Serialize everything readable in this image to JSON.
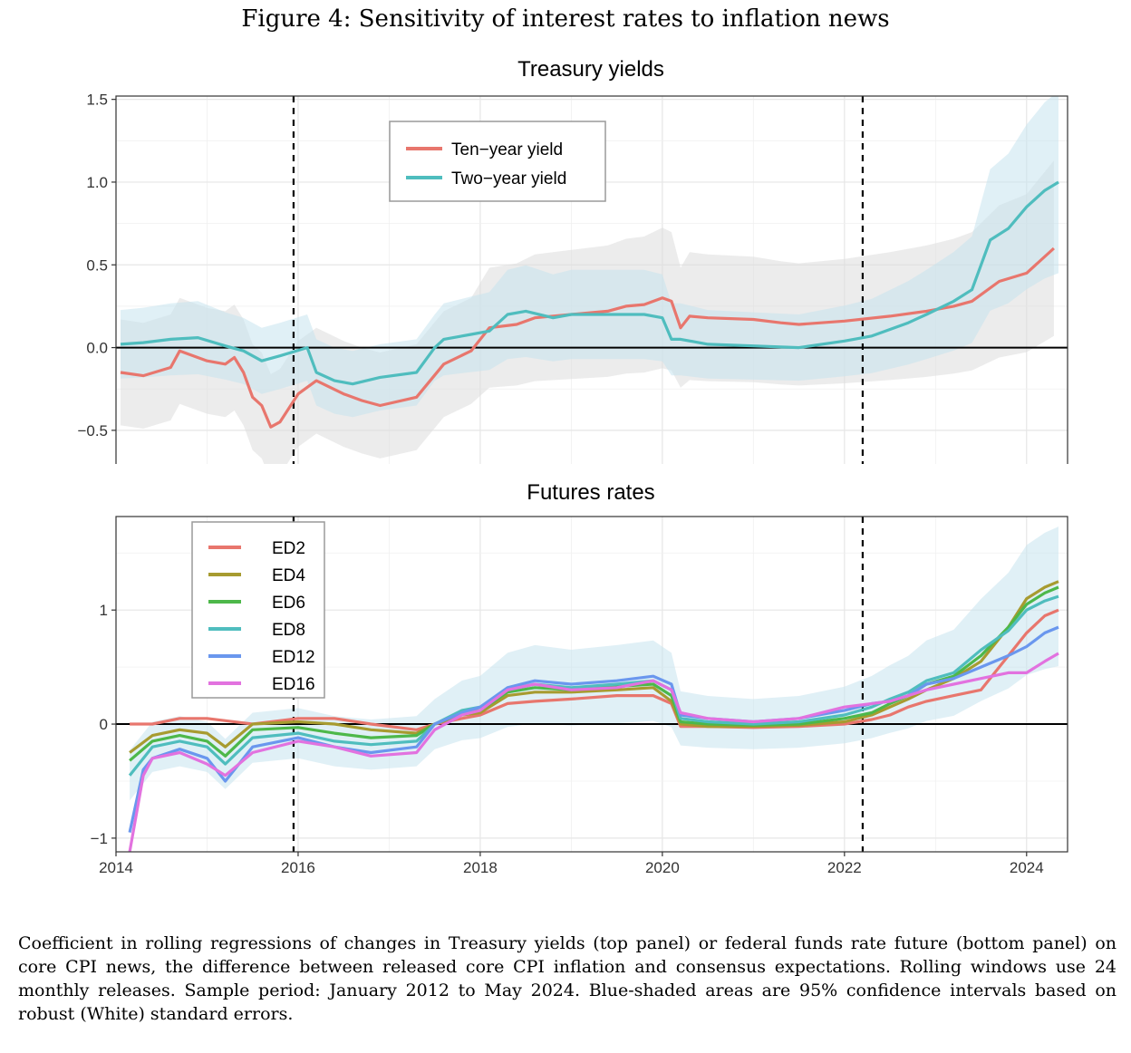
{
  "figure": {
    "title": "Figure 4: Sensitivity of interest rates to inflation news",
    "caption": "Coefficient in rolling regressions of changes in Treasury yields (top panel) or federal funds rate future (bottom panel) on core CPI news, the difference between released core CPI inflation and consensus expectations. Rolling windows use 24 monthly releases. Sample period: January 2012 to May 2024. Blue-shaded areas are 95% confidence intervals based on robust (White) standard errors."
  },
  "chart_data": [
    {
      "type": "line",
      "title": "Treasury yields",
      "xlabel": "",
      "ylabel": "",
      "xlim": [
        2014.0,
        2024.45
      ],
      "ylim": [
        -0.78,
        1.52
      ],
      "x_ticks": [
        2014,
        2016,
        2018,
        2020,
        2022,
        2024
      ],
      "x_tick_labels": [
        "2014",
        "2016",
        "2018",
        "2020",
        "2022",
        "2024"
      ],
      "y_ticks": [
        -0.5,
        0.0,
        0.5,
        1.0,
        1.5
      ],
      "y_tick_labels": [
        "−0.5",
        "0.0",
        "0.5",
        "1.0",
        "1.5"
      ],
      "vlines": [
        2015.95,
        2022.2
      ],
      "hline": 0,
      "grid": true,
      "legend_position": "top-center",
      "series": [
        {
          "name": "Ten−year yield",
          "color": "#E8766D",
          "x": [
            2014.05,
            2014.3,
            2014.6,
            2014.7,
            2015.0,
            2015.2,
            2015.3,
            2015.4,
            2015.5,
            2015.6,
            2015.7,
            2015.8,
            2016.0,
            2016.2,
            2016.5,
            2016.7,
            2016.9,
            2017.3,
            2017.6,
            2017.9,
            2018.1,
            2018.4,
            2018.6,
            2019.0,
            2019.4,
            2019.6,
            2019.8,
            2020.0,
            2020.1,
            2020.2,
            2020.3,
            2020.5,
            2021.0,
            2021.3,
            2021.5,
            2022.0,
            2022.5,
            2022.9,
            2023.2,
            2023.4,
            2023.7,
            2024.0,
            2024.3
          ],
          "y": [
            -0.15,
            -0.17,
            -0.12,
            -0.02,
            -0.08,
            -0.1,
            -0.06,
            -0.15,
            -0.3,
            -0.35,
            -0.48,
            -0.45,
            -0.28,
            -0.2,
            -0.28,
            -0.32,
            -0.35,
            -0.3,
            -0.1,
            -0.02,
            0.12,
            0.14,
            0.18,
            0.2,
            0.22,
            0.25,
            0.26,
            0.3,
            0.28,
            0.12,
            0.19,
            0.18,
            0.17,
            0.15,
            0.14,
            0.16,
            0.19,
            0.22,
            0.25,
            0.28,
            0.4,
            0.45,
            0.6
          ]
        },
        {
          "name": "Two−year yield",
          "color": "#4FBDBE",
          "x": [
            2014.05,
            2014.3,
            2014.6,
            2014.9,
            2015.2,
            2015.4,
            2015.6,
            2015.8,
            2016.1,
            2016.2,
            2016.4,
            2016.6,
            2016.9,
            2017.3,
            2017.5,
            2017.6,
            2017.9,
            2018.1,
            2018.3,
            2018.5,
            2018.8,
            2019.0,
            2019.4,
            2019.8,
            2020.0,
            2020.1,
            2020.2,
            2020.5,
            2021.0,
            2021.5,
            2022.0,
            2022.3,
            2022.7,
            2022.9,
            2023.2,
            2023.4,
            2023.6,
            2023.8,
            2024.0,
            2024.2,
            2024.35
          ],
          "y": [
            0.02,
            0.03,
            0.05,
            0.06,
            0.01,
            -0.02,
            -0.08,
            -0.05,
            0.0,
            -0.15,
            -0.2,
            -0.22,
            -0.18,
            -0.15,
            0.0,
            0.05,
            0.08,
            0.1,
            0.2,
            0.22,
            0.18,
            0.2,
            0.2,
            0.2,
            0.18,
            0.05,
            0.05,
            0.02,
            0.01,
            0.0,
            0.04,
            0.07,
            0.15,
            0.2,
            0.28,
            0.35,
            0.65,
            0.72,
            0.85,
            0.95,
            1.0
          ]
        }
      ]
    },
    {
      "type": "line",
      "title": "Futures rates",
      "xlabel": "",
      "ylabel": "",
      "xlim": [
        2014.0,
        2024.45
      ],
      "ylim": [
        -1.12,
        1.82
      ],
      "x_ticks": [
        2014,
        2016,
        2018,
        2020,
        2022,
        2024
      ],
      "x_tick_labels": [
        "2014",
        "2016",
        "2018",
        "2020",
        "2022",
        "2024"
      ],
      "y_ticks": [
        -1,
        0,
        1
      ],
      "y_tick_labels": [
        "−1",
        "0",
        "1"
      ],
      "vlines": [
        2015.95,
        2022.2
      ],
      "hline": 0,
      "grid": true,
      "legend_position": "top-left",
      "series": [
        {
          "name": "ED2",
          "color": "#E8766D",
          "x": [
            2014.15,
            2014.4,
            2014.7,
            2015.0,
            2015.5,
            2016.0,
            2016.4,
            2016.8,
            2017.3,
            2017.5,
            2017.8,
            2018.0,
            2018.3,
            2018.6,
            2019.0,
            2019.5,
            2019.9,
            2020.1,
            2020.2,
            2020.5,
            2021.0,
            2021.5,
            2022.0,
            2022.3,
            2022.5,
            2022.7,
            2022.9,
            2023.2,
            2023.5,
            2023.8,
            2024.0,
            2024.2,
            2024.35
          ],
          "y": [
            0.0,
            0.0,
            0.05,
            0.05,
            0.0,
            0.05,
            0.05,
            0.0,
            -0.05,
            0.0,
            0.05,
            0.08,
            0.18,
            0.2,
            0.22,
            0.25,
            0.25,
            0.18,
            -0.02,
            -0.02,
            -0.03,
            -0.02,
            0.0,
            0.04,
            0.08,
            0.15,
            0.2,
            0.25,
            0.3,
            0.6,
            0.8,
            0.95,
            1.0
          ]
        },
        {
          "name": "ED4",
          "color": "#A79B30",
          "x": [
            2014.15,
            2014.4,
            2014.7,
            2015.0,
            2015.2,
            2015.5,
            2016.0,
            2016.4,
            2016.8,
            2017.3,
            2017.5,
            2017.8,
            2018.0,
            2018.3,
            2018.6,
            2019.0,
            2019.5,
            2019.9,
            2020.1,
            2020.2,
            2020.5,
            2021.0,
            2021.5,
            2022.0,
            2022.3,
            2022.5,
            2022.7,
            2022.9,
            2023.2,
            2023.5,
            2023.8,
            2024.0,
            2024.2,
            2024.35
          ],
          "y": [
            -0.25,
            -0.1,
            -0.05,
            -0.08,
            -0.2,
            0.0,
            0.02,
            0.0,
            -0.05,
            -0.08,
            0.0,
            0.08,
            0.1,
            0.25,
            0.28,
            0.28,
            0.3,
            0.32,
            0.2,
            0.0,
            -0.02,
            -0.02,
            -0.01,
            0.02,
            0.08,
            0.15,
            0.22,
            0.3,
            0.4,
            0.55,
            0.85,
            1.1,
            1.2,
            1.25
          ]
        },
        {
          "name": "ED6",
          "color": "#4DB84A",
          "x": [
            2014.15,
            2014.4,
            2014.7,
            2015.0,
            2015.2,
            2015.5,
            2016.0,
            2016.4,
            2016.8,
            2017.3,
            2017.5,
            2017.8,
            2018.0,
            2018.3,
            2018.6,
            2019.0,
            2019.5,
            2019.9,
            2020.1,
            2020.2,
            2020.5,
            2021.0,
            2021.5,
            2022.0,
            2022.3,
            2022.5,
            2022.7,
            2022.9,
            2023.2,
            2023.5,
            2023.8,
            2024.0,
            2024.2,
            2024.35
          ],
          "y": [
            -0.32,
            -0.15,
            -0.1,
            -0.15,
            -0.28,
            -0.05,
            -0.03,
            -0.08,
            -0.12,
            -0.1,
            0.0,
            0.1,
            0.12,
            0.28,
            0.32,
            0.3,
            0.33,
            0.35,
            0.25,
            0.02,
            0.0,
            -0.01,
            0.0,
            0.05,
            0.1,
            0.18,
            0.25,
            0.35,
            0.42,
            0.6,
            0.85,
            1.05,
            1.15,
            1.2
          ]
        },
        {
          "name": "ED8",
          "color": "#4FBDBE",
          "x": [
            2014.15,
            2014.4,
            2014.7,
            2015.0,
            2015.2,
            2015.5,
            2016.0,
            2016.4,
            2016.8,
            2017.3,
            2017.5,
            2017.8,
            2018.0,
            2018.3,
            2018.6,
            2019.0,
            2019.5,
            2019.9,
            2020.1,
            2020.2,
            2020.5,
            2021.0,
            2021.5,
            2022.0,
            2022.3,
            2022.5,
            2022.7,
            2022.9,
            2023.2,
            2023.5,
            2023.8,
            2024.0,
            2024.2,
            2024.35
          ],
          "y": [
            -0.45,
            -0.2,
            -0.15,
            -0.2,
            -0.35,
            -0.12,
            -0.08,
            -0.15,
            -0.18,
            -0.15,
            0.0,
            0.12,
            0.15,
            0.3,
            0.35,
            0.32,
            0.35,
            0.38,
            0.3,
            0.05,
            0.02,
            0.0,
            0.02,
            0.08,
            0.15,
            0.22,
            0.28,
            0.38,
            0.45,
            0.65,
            0.82,
            1.0,
            1.08,
            1.12
          ]
        },
        {
          "name": "ED12",
          "color": "#6A97EE",
          "x": [
            2014.15,
            2014.3,
            2014.4,
            2014.7,
            2015.0,
            2015.2,
            2015.5,
            2016.0,
            2016.4,
            2016.8,
            2017.3,
            2017.5,
            2017.8,
            2018.0,
            2018.3,
            2018.6,
            2019.0,
            2019.5,
            2019.9,
            2020.1,
            2020.2,
            2020.5,
            2021.0,
            2021.5,
            2022.0,
            2022.3,
            2022.5,
            2022.7,
            2022.9,
            2023.2,
            2023.5,
            2023.8,
            2024.0,
            2024.2,
            2024.35
          ],
          "y": [
            -0.95,
            -0.4,
            -0.3,
            -0.22,
            -0.3,
            -0.5,
            -0.2,
            -0.12,
            -0.2,
            -0.25,
            -0.2,
            0.0,
            0.1,
            0.15,
            0.32,
            0.38,
            0.35,
            0.38,
            0.42,
            0.35,
            0.08,
            0.05,
            0.02,
            0.05,
            0.12,
            0.18,
            0.2,
            0.25,
            0.35,
            0.4,
            0.5,
            0.6,
            0.68,
            0.8,
            0.85
          ]
        },
        {
          "name": "ED16",
          "color": "#E272DF",
          "x": [
            2014.15,
            2014.3,
            2014.4,
            2014.7,
            2015.0,
            2015.2,
            2015.5,
            2016.0,
            2016.4,
            2016.8,
            2017.3,
            2017.5,
            2017.8,
            2018.0,
            2018.3,
            2018.6,
            2019.0,
            2019.5,
            2019.9,
            2020.1,
            2020.2,
            2020.5,
            2021.0,
            2021.5,
            2022.0,
            2022.3,
            2022.5,
            2022.7,
            2022.9,
            2023.2,
            2023.5,
            2023.8,
            2024.0,
            2024.2,
            2024.35
          ],
          "y": [
            -1.12,
            -0.45,
            -0.3,
            -0.25,
            -0.35,
            -0.45,
            -0.25,
            -0.15,
            -0.2,
            -0.28,
            -0.25,
            -0.05,
            0.08,
            0.12,
            0.3,
            0.35,
            0.3,
            0.32,
            0.38,
            0.3,
            0.1,
            0.05,
            0.02,
            0.05,
            0.15,
            0.18,
            0.2,
            0.25,
            0.3,
            0.35,
            0.4,
            0.45,
            0.45,
            0.55,
            0.62
          ]
        }
      ]
    }
  ]
}
